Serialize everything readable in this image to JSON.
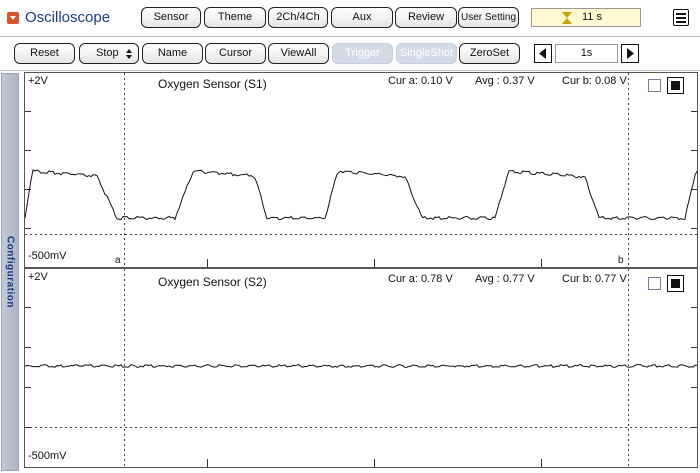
{
  "app": {
    "title": "Oscilloscope",
    "timer": "11 s"
  },
  "top_buttons": [
    "Sensor",
    "Theme",
    "2Ch/4Ch",
    "Aux",
    "Review",
    "User Setting"
  ],
  "toolbar": {
    "reset": "Reset",
    "run_select": "Stop",
    "name": "Name",
    "cursor": "Cursor",
    "viewall": "ViewAll",
    "trigger": "Trigger",
    "singleshot": "SingleShot",
    "zeroset": "ZeroSet",
    "timebase": "1s"
  },
  "sidebar": {
    "label": "Configuration"
  },
  "channels": [
    {
      "title": "Oxygen Sensor (S1)",
      "scale_top": "+2V",
      "scale_bottom": "-500mV",
      "cur_a": "Cur a: 0.10 V",
      "avg": "Avg  : 0.37 V",
      "cur_b": "Cur b: 0.08 V",
      "cursor_a": "a",
      "cursor_b": "b"
    },
    {
      "title": "Oxygen Sensor (S2)",
      "scale_top": "+2V",
      "scale_bottom": "-500mV",
      "cur_a": "Cur a: 0.78 V",
      "avg": "Avg  : 0.77 V",
      "cur_b": "Cur b: 0.77 V"
    }
  ],
  "colors": {
    "accent": "#d9542b",
    "title_blue": "#1b3a86",
    "disabled": "#d3dbe6",
    "timer_bg": "#fff8d0"
  }
}
